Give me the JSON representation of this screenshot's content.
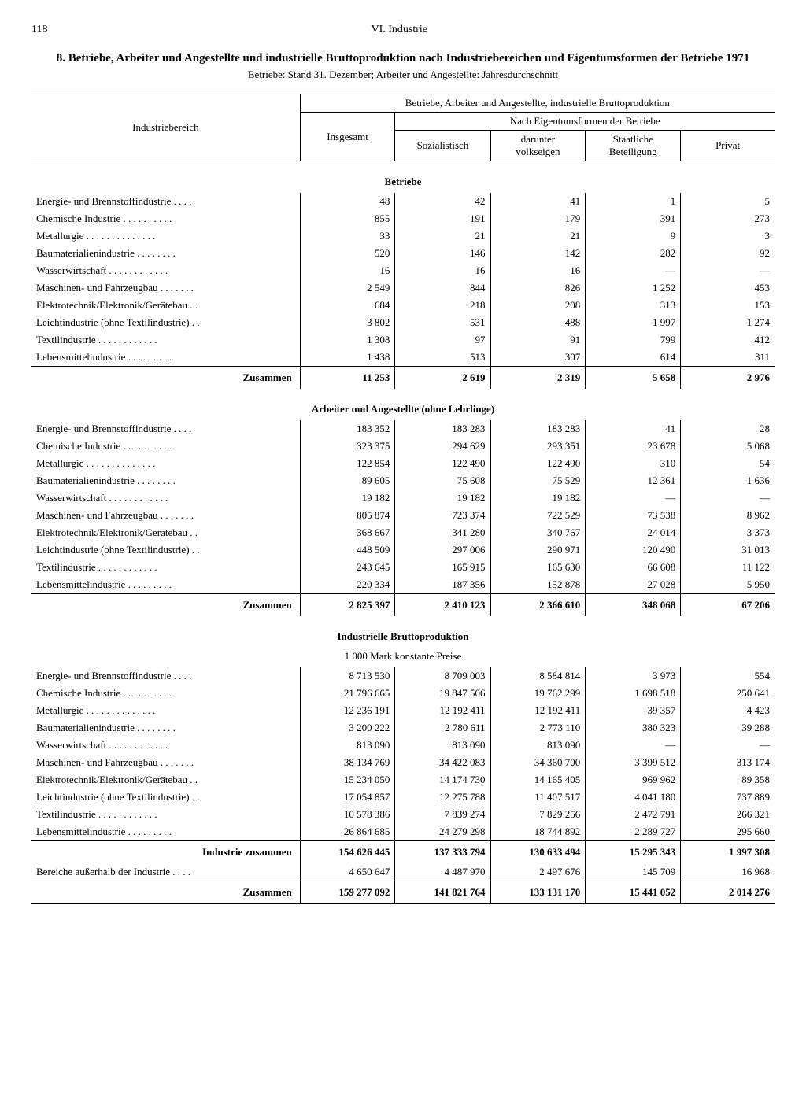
{
  "page": {
    "number": "118",
    "chapter": "VI. Industrie"
  },
  "title": "8. Betriebe, Arbeiter und Angestellte und industrielle Bruttoproduktion nach Industriebereichen und Eigentumsformen der Betriebe 1971",
  "subtitle": "Betriebe: Stand 31. Dezember; Arbeiter und Angestellte: Jahresdurchschnitt",
  "header": {
    "col0": "Industriebereich",
    "span": "Betriebe, Arbeiter und Angestellte, industrielle Bruttoproduktion",
    "sub": "Nach Eigentumsformen der Betriebe",
    "c1": "Insgesamt",
    "c2": "Sozialistisch",
    "c3_a": "darunter",
    "c3_b": "volkseigen",
    "c4_a": "Staatliche",
    "c4_b": "Beteiligung",
    "c5": "Privat"
  },
  "rowLabels": [
    "Energie- und Brennstoffindustrie",
    "Chemische Industrie",
    "Metallurgie",
    "Baumaterialienindustrie",
    "Wasserwirtschaft",
    "Maschinen- und Fahrzeugbau",
    "Elektrotechnik/Elektronik/Gerätebau",
    "Leichtindustrie (ohne Textilindustrie)",
    "Textilindustrie",
    "Lebensmittelindustrie"
  ],
  "sections": {
    "betriebe": {
      "title": "Betriebe",
      "rows": [
        [
          "48",
          "42",
          "41",
          "1",
          "5"
        ],
        [
          "855",
          "191",
          "179",
          "391",
          "273"
        ],
        [
          "33",
          "21",
          "21",
          "9",
          "3"
        ],
        [
          "520",
          "146",
          "142",
          "282",
          "92"
        ],
        [
          "16",
          "16",
          "16",
          "—",
          "—"
        ],
        [
          "2 549",
          "844",
          "826",
          "1 252",
          "453"
        ],
        [
          "684",
          "218",
          "208",
          "313",
          "153"
        ],
        [
          "3 802",
          "531",
          "488",
          "1 997",
          "1 274"
        ],
        [
          "1 308",
          "97",
          "91",
          "799",
          "412"
        ],
        [
          "1 438",
          "513",
          "307",
          "614",
          "311"
        ]
      ],
      "sumLabel": "Zusammen",
      "sum": [
        "11 253",
        "2 619",
        "2 319",
        "5 658",
        "2 976"
      ]
    },
    "arbeiter": {
      "title": "Arbeiter und Angestellte (ohne Lehrlinge)",
      "rows": [
        [
          "183 352",
          "183 283",
          "183 283",
          "41",
          "28"
        ],
        [
          "323 375",
          "294 629",
          "293 351",
          "23 678",
          "5 068"
        ],
        [
          "122 854",
          "122 490",
          "122 490",
          "310",
          "54"
        ],
        [
          "89 605",
          "75 608",
          "75 529",
          "12 361",
          "1 636"
        ],
        [
          "19 182",
          "19 182",
          "19 182",
          "—",
          "—"
        ],
        [
          "805 874",
          "723 374",
          "722 529",
          "73 538",
          "8 962"
        ],
        [
          "368 667",
          "341 280",
          "340 767",
          "24 014",
          "3 373"
        ],
        [
          "448 509",
          "297 006",
          "290 971",
          "120 490",
          "31 013"
        ],
        [
          "243 645",
          "165 915",
          "165 630",
          "66 608",
          "11 122"
        ],
        [
          "220 334",
          "187 356",
          "152 878",
          "27 028",
          "5 950"
        ]
      ],
      "sumLabel": "Zusammen",
      "sum": [
        "2 825 397",
        "2 410 123",
        "2 366 610",
        "348 068",
        "67 206"
      ]
    },
    "brutto": {
      "title": "Industrielle Bruttoproduktion",
      "sub": "1 000 Mark konstante Preise",
      "rows": [
        [
          "8 713 530",
          "8 709 003",
          "8 584 814",
          "3 973",
          "554"
        ],
        [
          "21 796 665",
          "19 847 506",
          "19 762 299",
          "1 698 518",
          "250 641"
        ],
        [
          "12 236 191",
          "12 192 411",
          "12 192 411",
          "39 357",
          "4 423"
        ],
        [
          "3 200 222",
          "2 780 611",
          "2 773 110",
          "380 323",
          "39 288"
        ],
        [
          "813 090",
          "813 090",
          "813 090",
          "—",
          "—"
        ],
        [
          "38 134 769",
          "34 422 083",
          "34 360 700",
          "3 399 512",
          "313 174"
        ],
        [
          "15 234 050",
          "14 174 730",
          "14 165 405",
          "969 962",
          "89 358"
        ],
        [
          "17 054 857",
          "12 275 788",
          "11 407 517",
          "4 041 180",
          "737 889"
        ],
        [
          "10 578 386",
          "7 839 274",
          "7 829 256",
          "2 472 791",
          "266 321"
        ],
        [
          "26 864 685",
          "24 279 298",
          "18 744 892",
          "2 289 727",
          "295 660"
        ]
      ],
      "sum1Label": "Industrie zusammen",
      "sum1": [
        "154 626 445",
        "137 333 794",
        "130 633 494",
        "15 295 343",
        "1 997 308"
      ],
      "extraLabel": "Bereiche außerhalb der Industrie",
      "extra": [
        "4 650 647",
        "4 487 970",
        "2 497 676",
        "145 709",
        "16 968"
      ],
      "sum2Label": "Zusammen",
      "sum2": [
        "159 277 092",
        "141 821 764",
        "133 131 170",
        "15 441 052",
        "2 014 276"
      ]
    }
  }
}
